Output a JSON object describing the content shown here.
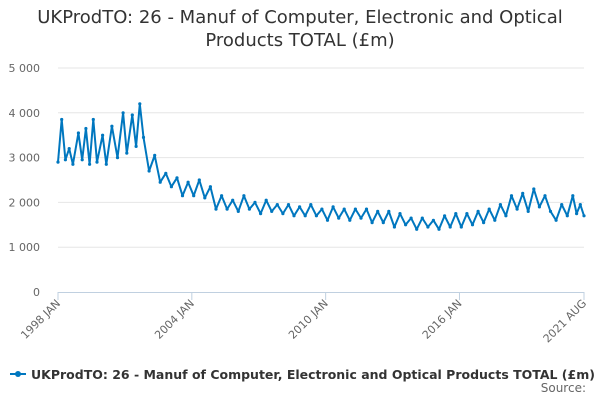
{
  "chart_data": {
    "type": "line",
    "title_line1": "UKProdTO: 26 - Manuf of Computer, Electronic and Optical",
    "title_line2": "Products TOTAL (£m)",
    "ylim": [
      0,
      5000
    ],
    "y_ticks": [
      {
        "value": 0,
        "label": "0"
      },
      {
        "value": 1000,
        "label": "1 000"
      },
      {
        "value": 2000,
        "label": "2 000"
      },
      {
        "value": 3000,
        "label": "3 000"
      },
      {
        "value": 4000,
        "label": "4 000"
      },
      {
        "value": 5000,
        "label": "5 000"
      }
    ],
    "x_range": [
      "1998-01",
      "2021-08"
    ],
    "x_ticks": [
      {
        "date": "1998-01",
        "label": "1998 JAN"
      },
      {
        "date": "2004-01",
        "label": "2004 JAN"
      },
      {
        "date": "2010-01",
        "label": "2010 JAN"
      },
      {
        "date": "2016-01",
        "label": "2016 JAN"
      },
      {
        "date": "2021-08",
        "label": "2021 AUG"
      }
    ],
    "grid": "horizontal",
    "legend_position": "bottom-left",
    "series": [
      {
        "name": "UKProdTO: 26 - Manuf of Computer, Electronic and Optical Products TOTAL (£m)",
        "color": "#0077bf",
        "points": [
          [
            "1998-01",
            2900
          ],
          [
            "1998-03",
            3850
          ],
          [
            "1998-05",
            2950
          ],
          [
            "1998-07",
            3200
          ],
          [
            "1998-09",
            2850
          ],
          [
            "1998-12",
            3550
          ],
          [
            "1999-02",
            2950
          ],
          [
            "1999-04",
            3650
          ],
          [
            "1999-06",
            2850
          ],
          [
            "1999-08",
            3850
          ],
          [
            "1999-10",
            2900
          ],
          [
            "2000-01",
            3500
          ],
          [
            "2000-03",
            2850
          ],
          [
            "2000-06",
            3700
          ],
          [
            "2000-09",
            3000
          ],
          [
            "2000-12",
            4000
          ],
          [
            "2001-02",
            3100
          ],
          [
            "2001-05",
            3950
          ],
          [
            "2001-07",
            3250
          ],
          [
            "2001-09",
            4200
          ],
          [
            "2001-11",
            3450
          ],
          [
            "2002-02",
            2700
          ],
          [
            "2002-05",
            3050
          ],
          [
            "2002-08",
            2450
          ],
          [
            "2002-11",
            2650
          ],
          [
            "2003-02",
            2350
          ],
          [
            "2003-05",
            2550
          ],
          [
            "2003-08",
            2150
          ],
          [
            "2003-11",
            2450
          ],
          [
            "2004-02",
            2150
          ],
          [
            "2004-05",
            2500
          ],
          [
            "2004-08",
            2100
          ],
          [
            "2004-11",
            2350
          ],
          [
            "2005-02",
            1850
          ],
          [
            "2005-05",
            2150
          ],
          [
            "2005-08",
            1850
          ],
          [
            "2005-11",
            2050
          ],
          [
            "2006-02",
            1800
          ],
          [
            "2006-05",
            2150
          ],
          [
            "2006-08",
            1850
          ],
          [
            "2006-11",
            2000
          ],
          [
            "2007-02",
            1750
          ],
          [
            "2007-05",
            2050
          ],
          [
            "2007-08",
            1800
          ],
          [
            "2007-11",
            1950
          ],
          [
            "2008-02",
            1750
          ],
          [
            "2008-05",
            1950
          ],
          [
            "2008-08",
            1700
          ],
          [
            "2008-11",
            1900
          ],
          [
            "2009-02",
            1700
          ],
          [
            "2009-05",
            1950
          ],
          [
            "2009-08",
            1700
          ],
          [
            "2009-11",
            1850
          ],
          [
            "2010-02",
            1600
          ],
          [
            "2010-05",
            1900
          ],
          [
            "2010-08",
            1650
          ],
          [
            "2010-11",
            1850
          ],
          [
            "2011-02",
            1600
          ],
          [
            "2011-05",
            1850
          ],
          [
            "2011-08",
            1650
          ],
          [
            "2011-11",
            1850
          ],
          [
            "2012-02",
            1550
          ],
          [
            "2012-05",
            1800
          ],
          [
            "2012-08",
            1550
          ],
          [
            "2012-11",
            1800
          ],
          [
            "2013-02",
            1450
          ],
          [
            "2013-05",
            1750
          ],
          [
            "2013-08",
            1500
          ],
          [
            "2013-11",
            1650
          ],
          [
            "2014-02",
            1400
          ],
          [
            "2014-05",
            1650
          ],
          [
            "2014-08",
            1450
          ],
          [
            "2014-11",
            1600
          ],
          [
            "2015-02",
            1400
          ],
          [
            "2015-05",
            1700
          ],
          [
            "2015-08",
            1450
          ],
          [
            "2015-11",
            1750
          ],
          [
            "2016-02",
            1450
          ],
          [
            "2016-05",
            1750
          ],
          [
            "2016-08",
            1500
          ],
          [
            "2016-11",
            1800
          ],
          [
            "2017-02",
            1550
          ],
          [
            "2017-05",
            1850
          ],
          [
            "2017-08",
            1600
          ],
          [
            "2017-11",
            1950
          ],
          [
            "2018-02",
            1700
          ],
          [
            "2018-05",
            2150
          ],
          [
            "2018-08",
            1850
          ],
          [
            "2018-11",
            2200
          ],
          [
            "2019-02",
            1800
          ],
          [
            "2019-05",
            2300
          ],
          [
            "2019-08",
            1900
          ],
          [
            "2019-11",
            2150
          ],
          [
            "2020-02",
            1800
          ],
          [
            "2020-05",
            1600
          ],
          [
            "2020-08",
            1950
          ],
          [
            "2020-11",
            1700
          ],
          [
            "2021-02",
            2150
          ],
          [
            "2021-04",
            1750
          ],
          [
            "2021-06",
            1950
          ],
          [
            "2021-08",
            1700
          ]
        ]
      }
    ]
  },
  "legend": {
    "label": "UKProdTO: 26 - Manuf of Computer, Electronic and Optical Products TOTAL (£m)"
  },
  "footer": {
    "source": "Source:"
  }
}
